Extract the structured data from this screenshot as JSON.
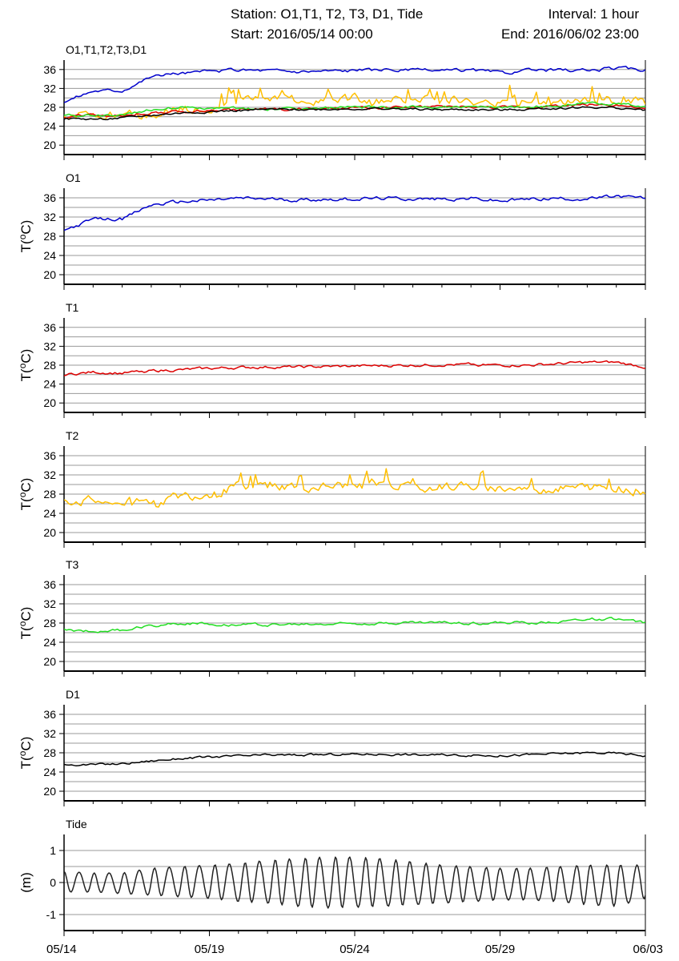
{
  "header": {
    "station": "Station: O1,T1, T2, T3, D1, Tide",
    "start": "Start: 2016/05/14 00:00",
    "interval": "Interval: 1 hour",
    "end": "End: 2016/06/02 23:00"
  },
  "colors": {
    "O1": "#0000cc",
    "T1": "#dd0000",
    "T2": "#ffbf00",
    "T3": "#22dd22",
    "D1": "#000000",
    "Tide": "#222222",
    "grid": "#9a9a9a"
  },
  "x_axis": {
    "start": "05/14",
    "end": "06/03",
    "ticks": [
      "05/14",
      "05/19",
      "05/24",
      "05/29",
      "06/03"
    ],
    "minor_tick_step_days": 1
  },
  "chart_data": [
    {
      "type": "line",
      "title": "O1,T1,T2,T3,D1",
      "ylabel": "",
      "ylim": [
        18,
        38
      ],
      "yticks": [
        "20",
        "24",
        "28",
        "32",
        "36"
      ],
      "grid": true,
      "series": [
        {
          "name": "T2",
          "color": "#ffbf00",
          "x": [
            "05/14",
            "05/15",
            "05/16",
            "05/17",
            "05/18",
            "05/19",
            "05/20",
            "05/21",
            "05/22",
            "05/23",
            "05/24",
            "05/25",
            "05/26",
            "05/27",
            "05/28",
            "05/29",
            "05/30",
            "05/31",
            "06/01",
            "06/02",
            "06/03"
          ],
          "values": [
            26.8,
            26.5,
            26.3,
            26.5,
            27.5,
            28.2,
            29.5,
            29.8,
            29.6,
            29.5,
            29.8,
            29.6,
            29.8,
            29.5,
            29.5,
            29.2,
            29.0,
            29.2,
            29.3,
            29.3,
            28.8
          ]
        },
        {
          "name": "T1",
          "color": "#dd0000",
          "x": [
            "05/14",
            "05/15",
            "05/16",
            "05/17",
            "05/18",
            "05/19",
            "05/20",
            "05/21",
            "05/22",
            "05/23",
            "05/24",
            "05/25",
            "05/26",
            "05/27",
            "05/28",
            "05/29",
            "05/30",
            "05/31",
            "06/01",
            "06/02",
            "06/03"
          ],
          "values": [
            26.0,
            26.5,
            26.3,
            26.8,
            27.0,
            27.3,
            27.5,
            27.6,
            27.6,
            27.7,
            27.8,
            27.9,
            28.0,
            28.1,
            28.1,
            28.0,
            28.0,
            28.3,
            28.6,
            28.6,
            27.6
          ]
        },
        {
          "name": "T3",
          "color": "#22dd22",
          "x": [
            "05/14",
            "05/15",
            "05/16",
            "05/17",
            "05/18",
            "05/19",
            "05/20",
            "05/21",
            "05/22",
            "05/23",
            "05/24",
            "05/25",
            "05/26",
            "05/27",
            "05/28",
            "05/29",
            "05/30",
            "05/31",
            "06/01",
            "06/02",
            "06/03"
          ],
          "values": [
            26.5,
            26.3,
            26.5,
            27.5,
            28.0,
            27.8,
            27.7,
            27.7,
            27.7,
            27.8,
            28.0,
            28.0,
            28.1,
            28.1,
            28.0,
            28.0,
            28.1,
            28.3,
            28.8,
            28.8,
            28.0
          ]
        },
        {
          "name": "D1",
          "color": "#000000",
          "x": [
            "05/14",
            "05/15",
            "05/16",
            "05/17",
            "05/18",
            "05/19",
            "05/20",
            "05/21",
            "05/22",
            "05/23",
            "05/24",
            "05/25",
            "05/26",
            "05/27",
            "05/28",
            "05/29",
            "05/30",
            "05/31",
            "06/01",
            "06/02",
            "06/03"
          ],
          "values": [
            25.6,
            25.5,
            25.7,
            26.3,
            26.8,
            27.1,
            27.3,
            27.5,
            27.5,
            27.6,
            27.7,
            27.7,
            27.6,
            27.5,
            27.5,
            27.4,
            27.6,
            27.8,
            28.0,
            27.9,
            27.4
          ]
        },
        {
          "name": "O1",
          "color": "#0000cc",
          "x": [
            "05/14",
            "05/15",
            "05/16",
            "05/17",
            "05/18",
            "05/19",
            "05/20",
            "05/21",
            "05/22",
            "05/23",
            "05/24",
            "05/25",
            "05/26",
            "05/27",
            "05/28",
            "05/29",
            "05/30",
            "05/31",
            "06/01",
            "06/02",
            "06/03"
          ],
          "values": [
            29.2,
            31.5,
            31.6,
            34.5,
            35.2,
            35.5,
            35.9,
            35.8,
            35.6,
            35.7,
            35.8,
            35.9,
            35.8,
            35.7,
            35.9,
            35.3,
            35.7,
            35.9,
            35.8,
            36.3,
            35.9
          ]
        }
      ]
    },
    {
      "type": "line",
      "title": "O1",
      "ylabel": "T(oC)",
      "ylim": [
        18,
        38
      ],
      "yticks": [
        "20",
        "24",
        "28",
        "32",
        "36"
      ],
      "grid": true,
      "series": [
        {
          "name": "O1",
          "color": "#0000cc",
          "x": [
            "05/14",
            "05/15",
            "05/16",
            "05/17",
            "05/18",
            "05/19",
            "05/20",
            "05/21",
            "05/22",
            "05/23",
            "05/24",
            "05/25",
            "05/26",
            "05/27",
            "05/28",
            "05/29",
            "05/30",
            "05/31",
            "06/01",
            "06/02",
            "06/03"
          ],
          "values": [
            29.2,
            31.5,
            31.6,
            34.5,
            35.2,
            35.5,
            35.9,
            35.8,
            35.6,
            35.7,
            35.8,
            35.9,
            35.8,
            35.7,
            35.9,
            35.3,
            35.7,
            35.9,
            35.8,
            36.3,
            35.9
          ]
        }
      ]
    },
    {
      "type": "line",
      "title": "T1",
      "ylabel": "T(oC)",
      "ylim": [
        18,
        38
      ],
      "yticks": [
        "20",
        "24",
        "28",
        "32",
        "36"
      ],
      "grid": true,
      "series": [
        {
          "name": "T1",
          "color": "#dd0000",
          "x": [
            "05/14",
            "05/15",
            "05/16",
            "05/17",
            "05/18",
            "05/19",
            "05/20",
            "05/21",
            "05/22",
            "05/23",
            "05/24",
            "05/25",
            "05/26",
            "05/27",
            "05/28",
            "05/29",
            "05/30",
            "05/31",
            "06/01",
            "06/02",
            "06/03"
          ],
          "values": [
            26.0,
            26.5,
            26.3,
            26.8,
            27.0,
            27.3,
            27.5,
            27.6,
            27.6,
            27.7,
            27.8,
            27.9,
            28.0,
            28.1,
            28.1,
            28.0,
            28.0,
            28.3,
            28.6,
            28.6,
            27.6
          ]
        }
      ]
    },
    {
      "type": "line",
      "title": "T2",
      "ylabel": "T(oC)",
      "ylim": [
        18,
        38
      ],
      "yticks": [
        "20",
        "24",
        "28",
        "32",
        "36"
      ],
      "grid": true,
      "series": [
        {
          "name": "T2",
          "color": "#ffbf00",
          "x": [
            "05/14",
            "05/15",
            "05/16",
            "05/17",
            "05/18",
            "05/19",
            "05/20",
            "05/21",
            "05/22",
            "05/23",
            "05/24",
            "05/25",
            "05/26",
            "05/27",
            "05/28",
            "05/29",
            "05/30",
            "05/31",
            "06/01",
            "06/02",
            "06/03"
          ],
          "values": [
            26.8,
            26.5,
            26.3,
            26.5,
            27.5,
            28.2,
            29.5,
            29.8,
            29.6,
            29.5,
            29.8,
            29.6,
            29.8,
            29.5,
            29.5,
            29.2,
            29.0,
            29.2,
            29.3,
            29.3,
            28.8
          ]
        }
      ]
    },
    {
      "type": "line",
      "title": "T3",
      "ylabel": "T(oC)",
      "ylim": [
        18,
        38
      ],
      "yticks": [
        "20",
        "24",
        "28",
        "32",
        "36"
      ],
      "grid": true,
      "series": [
        {
          "name": "T3",
          "color": "#22dd22",
          "x": [
            "05/14",
            "05/15",
            "05/16",
            "05/17",
            "05/18",
            "05/19",
            "05/20",
            "05/21",
            "05/22",
            "05/23",
            "05/24",
            "05/25",
            "05/26",
            "05/27",
            "05/28",
            "05/29",
            "05/30",
            "05/31",
            "06/01",
            "06/02",
            "06/03"
          ],
          "values": [
            26.5,
            26.3,
            26.5,
            27.5,
            28.0,
            27.8,
            27.7,
            27.7,
            27.7,
            27.8,
            28.0,
            28.0,
            28.1,
            28.1,
            28.0,
            28.0,
            28.1,
            28.3,
            28.8,
            28.8,
            28.0
          ]
        }
      ]
    },
    {
      "type": "line",
      "title": "D1",
      "ylabel": "T(oC)",
      "ylim": [
        18,
        38
      ],
      "yticks": [
        "20",
        "24",
        "28",
        "32",
        "36"
      ],
      "grid": true,
      "series": [
        {
          "name": "D1",
          "color": "#000000",
          "x": [
            "05/14",
            "05/15",
            "05/16",
            "05/17",
            "05/18",
            "05/19",
            "05/20",
            "05/21",
            "05/22",
            "05/23",
            "05/24",
            "05/25",
            "05/26",
            "05/27",
            "05/28",
            "05/29",
            "05/30",
            "05/31",
            "06/01",
            "06/02",
            "06/03"
          ],
          "values": [
            25.6,
            25.5,
            25.7,
            26.3,
            26.8,
            27.1,
            27.3,
            27.5,
            27.5,
            27.6,
            27.7,
            27.7,
            27.6,
            27.5,
            27.5,
            27.4,
            27.6,
            27.8,
            28.0,
            27.9,
            27.4
          ]
        }
      ]
    },
    {
      "type": "line",
      "title": "Tide",
      "ylabel": "(m)",
      "ylim": [
        -1.5,
        1.5
      ],
      "yticks": [
        "-1",
        "0",
        "1"
      ],
      "grid": true,
      "series": [
        {
          "name": "Tide",
          "color": "#222222",
          "x": [
            "05/14",
            "05/15",
            "05/16",
            "05/17",
            "05/18",
            "05/19",
            "05/20",
            "05/21",
            "05/22",
            "05/23",
            "05/24",
            "05/25",
            "05/26",
            "05/27",
            "05/28",
            "05/29",
            "05/30",
            "05/31",
            "06/01",
            "06/02",
            "06/03"
          ],
          "values_max": [
            0.35,
            0.3,
            0.3,
            0.45,
            0.5,
            0.55,
            0.6,
            0.7,
            0.75,
            0.8,
            0.8,
            0.75,
            0.65,
            0.55,
            0.5,
            0.45,
            0.45,
            0.5,
            0.55,
            0.55,
            0.55
          ],
          "values_min": [
            -0.3,
            -0.3,
            -0.35,
            -0.4,
            -0.45,
            -0.5,
            -0.6,
            -0.65,
            -0.75,
            -0.8,
            -0.78,
            -0.75,
            -0.7,
            -0.65,
            -0.6,
            -0.55,
            -0.55,
            -0.6,
            -0.7,
            -0.75,
            -0.5
          ],
          "cycles_per_day": 1
        }
      ]
    }
  ]
}
